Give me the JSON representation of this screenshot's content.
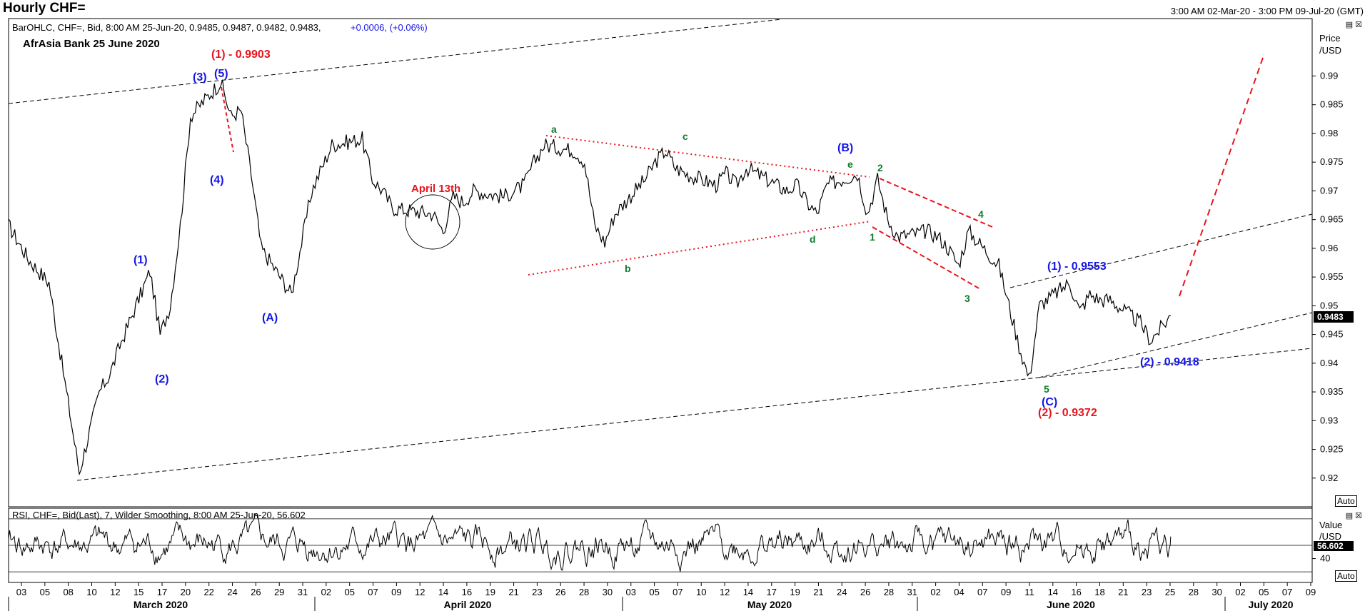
{
  "header": {
    "title": "Hourly CHF=",
    "date_range": "3:00 AM 02-Mar-20 - 3:00 PM 09-Jul-20 (GMT)",
    "price_info": "BarOHLC, CHF=, Bid, 8:00 AM 25-Jun-20, 0.9485, 0.9487, 0.9482, 0.9483,",
    "price_change": "+0.0006, (+0.06%)",
    "subtitle": "AfrAsia Bank 25 June 2020",
    "rsi_info": "RSI, CHF=, Bid(Last), 7, Wilder Smoothing, 8:00 AM 25-Jun-20, 56.602",
    "window_controls": "▤ ☒",
    "auto_label": "Auto"
  },
  "chart_data": [
    {
      "type": "line",
      "name": "price",
      "axis_title_1": "Price",
      "axis_title_2": "/USD",
      "ylim": [
        0.915,
        1.0
      ],
      "yticks": [
        "0.99",
        "0.985",
        "0.98",
        "0.975",
        "0.97",
        "0.965",
        "0.96",
        "0.955",
        "0.95",
        "0.945",
        "0.94",
        "0.935",
        "0.93",
        "0.925",
        "0.92"
      ],
      "current_value": "0.9483",
      "x": [
        "2020-03-02",
        "2020-03-04",
        "2020-03-06",
        "2020-03-09",
        "2020-03-10",
        "2020-03-11",
        "2020-03-12",
        "2020-03-13",
        "2020-03-16",
        "2020-03-17",
        "2020-03-18",
        "2020-03-19",
        "2020-03-20",
        "2020-03-23",
        "2020-03-24",
        "2020-03-25",
        "2020-03-26",
        "2020-03-27",
        "2020-03-30",
        "2020-03-31",
        "2020-04-01",
        "2020-04-02",
        "2020-04-03",
        "2020-04-06",
        "2020-04-07",
        "2020-04-08",
        "2020-04-09",
        "2020-04-13",
        "2020-04-14",
        "2020-04-15",
        "2020-04-16",
        "2020-04-17",
        "2020-04-20",
        "2020-04-21",
        "2020-04-22",
        "2020-04-23",
        "2020-04-24",
        "2020-04-27",
        "2020-04-28",
        "2020-04-29",
        "2020-04-30",
        "2020-05-01",
        "2020-05-04",
        "2020-05-05",
        "2020-05-06",
        "2020-05-07",
        "2020-05-08",
        "2020-05-11",
        "2020-05-12",
        "2020-05-13",
        "2020-05-14",
        "2020-05-15",
        "2020-05-18",
        "2020-05-19",
        "2020-05-20",
        "2020-05-21",
        "2020-05-22",
        "2020-05-25",
        "2020-05-26",
        "2020-05-27",
        "2020-05-28",
        "2020-05-29",
        "2020-06-01",
        "2020-06-02",
        "2020-06-03",
        "2020-06-04",
        "2020-06-05",
        "2020-06-08",
        "2020-06-09",
        "2020-06-10",
        "2020-06-11",
        "2020-06-12",
        "2020-06-15",
        "2020-06-16",
        "2020-06-17",
        "2020-06-18",
        "2020-06-19",
        "2020-06-22",
        "2020-06-23",
        "2020-06-24",
        "2020-06-25"
      ],
      "y": [
        0.964,
        0.958,
        0.954,
        0.921,
        0.928,
        0.935,
        0.938,
        0.943,
        0.956,
        0.945,
        0.95,
        0.964,
        0.983,
        0.989,
        0.983,
        0.984,
        0.973,
        0.96,
        0.952,
        0.961,
        0.97,
        0.974,
        0.978,
        0.979,
        0.972,
        0.97,
        0.967,
        0.966,
        0.963,
        0.969,
        0.968,
        0.97,
        0.969,
        0.97,
        0.971,
        0.975,
        0.978,
        0.977,
        0.975,
        0.964,
        0.961,
        0.966,
        0.972,
        0.975,
        0.977,
        0.974,
        0.973,
        0.971,
        0.973,
        0.971,
        0.974,
        0.973,
        0.97,
        0.971,
        0.968,
        0.966,
        0.971,
        0.973,
        0.966,
        0.972,
        0.965,
        0.962,
        0.963,
        0.962,
        0.96,
        0.957,
        0.963,
        0.957,
        0.95,
        0.943,
        0.9372,
        0.95,
        0.954,
        0.949,
        0.952,
        0.951,
        0.951,
        0.947,
        0.944,
        0.946,
        0.9483
      ]
    },
    {
      "type": "line",
      "name": "rsi",
      "axis_title_1": "Value",
      "axis_title_2": "/USD",
      "ylim": [
        22,
        78
      ],
      "yticks": [
        "40"
      ],
      "current_value": "56.602",
      "levels": [
        30,
        50,
        70
      ],
      "x": [
        "2020-03-02",
        "2020-06-25"
      ],
      "y": [
        56.6,
        56.602
      ]
    }
  ],
  "x_axis": {
    "ticks": [
      "03",
      "05",
      "08",
      "10",
      "12",
      "15",
      "17",
      "20",
      "22",
      "24",
      "26",
      "29",
      "31",
      "02",
      "05",
      "07",
      "09",
      "12",
      "14",
      "16",
      "19",
      "21",
      "23",
      "26",
      "28",
      "30",
      "03",
      "05",
      "07",
      "10",
      "12",
      "14",
      "17",
      "19",
      "21",
      "24",
      "26",
      "28",
      "31",
      "02",
      "04",
      "07",
      "09",
      "11",
      "14",
      "16",
      "18",
      "21",
      "23",
      "25",
      "28",
      "30",
      "02",
      "05",
      "07",
      "09"
    ],
    "months": [
      "March 2020",
      "April 2020",
      "May 2020",
      "June 2020",
      "July 2020"
    ]
  },
  "annotations": {
    "red": {
      "top_wave_1": "(1) - 0.9903",
      "april_13": "April 13th",
      "wave_2": "(2) - 0.9372"
    },
    "blue": {
      "w3": "(3)",
      "w5": "(5)",
      "w4": "(4)",
      "w1": "(1)",
      "w2": "(2)",
      "wA": "(A)",
      "wB": "(B)",
      "wC": "(C)",
      "new_1": "(1) - 0.9553",
      "new_2": "(2) - 0.9418"
    },
    "green": {
      "a": "a",
      "b": "b",
      "c": "c",
      "d": "d",
      "e": "e",
      "n1": "1",
      "n2": "2",
      "n3": "3",
      "n4": "4",
      "n5": "5"
    }
  },
  "colors": {
    "price": "#000000",
    "red": "#e8141c",
    "blue": "#1515e6",
    "green": "#107a2c"
  }
}
